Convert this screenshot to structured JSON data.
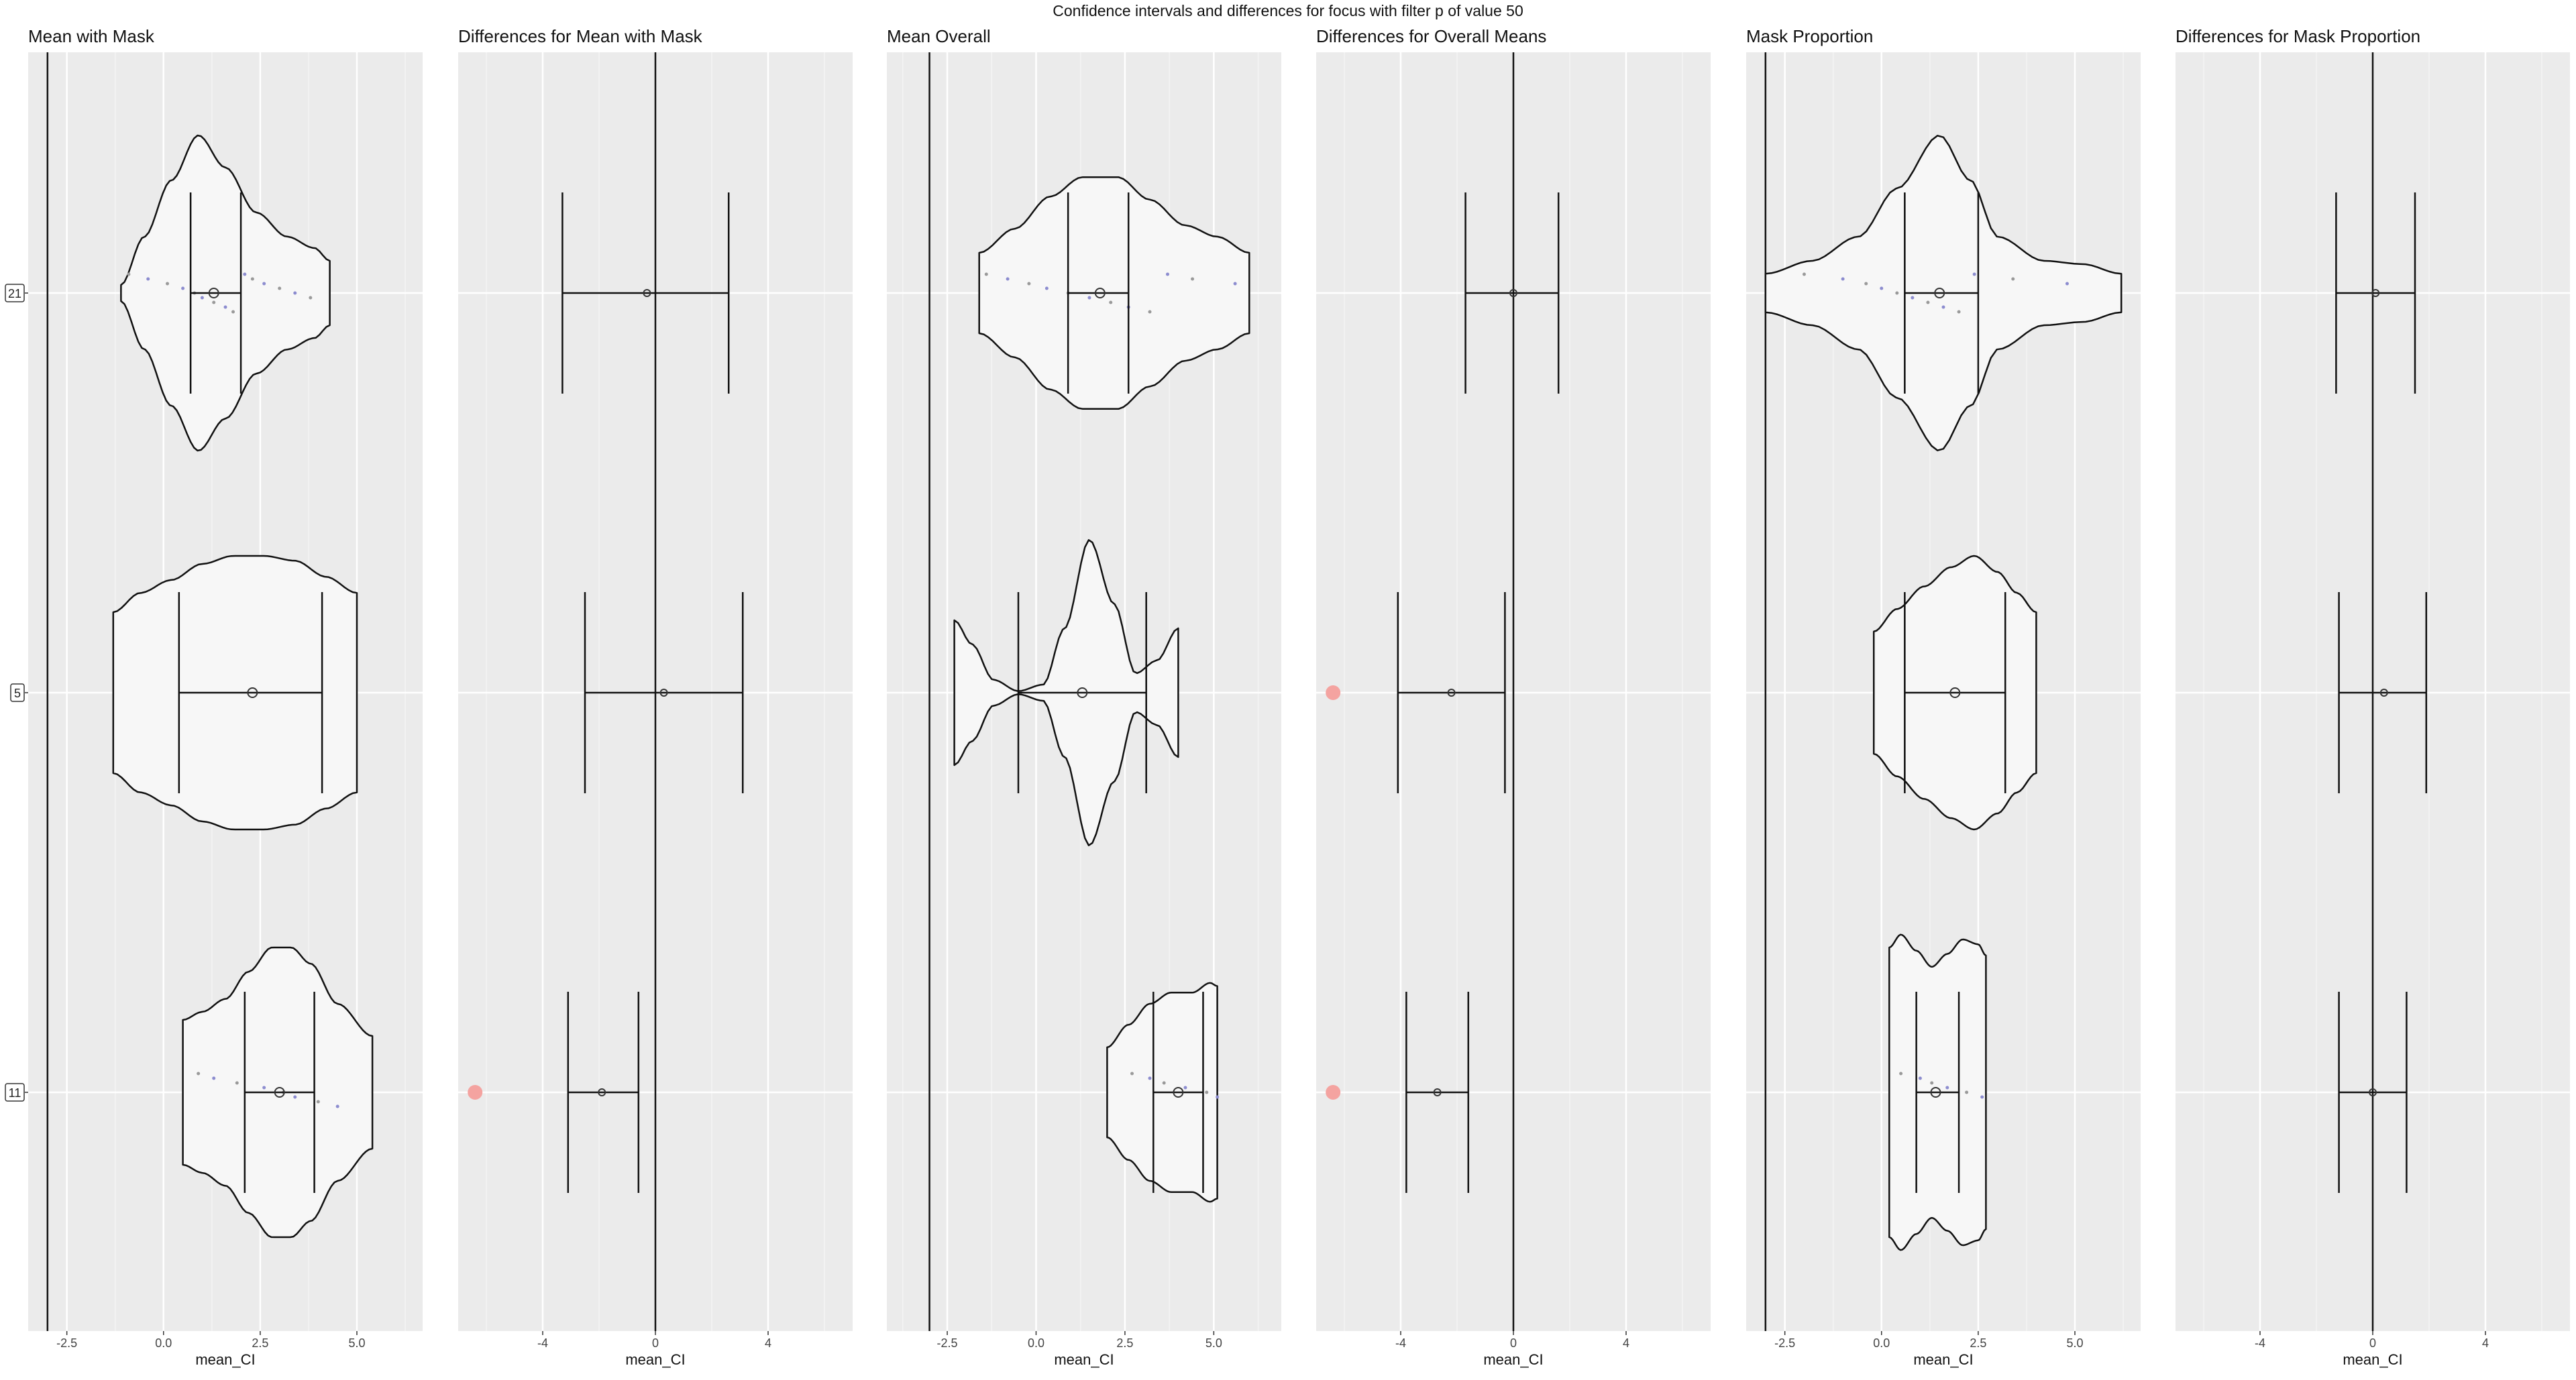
{
  "suptitle": "Confidence intervals and differences for focus with filter p of value 50",
  "group_labels": [
    "21",
    "5",
    "11"
  ],
  "chart_data": [
    {
      "type": "violin",
      "title": "Mean with Mask",
      "xlabel": "mean_CI",
      "xlim": [
        -3.5,
        6.7
      ],
      "xticks": [
        -2.5,
        0,
        2.5,
        5
      ],
      "xtick_labels": [
        "-2.5",
        "0.0",
        "2.5",
        "5.0"
      ],
      "ref_line": -3.0,
      "groups": [
        {
          "label": "21",
          "mean": 1.3,
          "ci": [
            0.7,
            2.0
          ],
          "spread": [
            -1.1,
            4.3
          ],
          "profile": [
            [
              -1.1,
              0.05
            ],
            [
              -0.5,
              0.35
            ],
            [
              0.2,
              0.7
            ],
            [
              0.9,
              0.98
            ],
            [
              1.6,
              0.78
            ],
            [
              2.4,
              0.5
            ],
            [
              3.2,
              0.35
            ],
            [
              3.9,
              0.28
            ],
            [
              4.3,
              0.2
            ]
          ],
          "points": [
            -0.9,
            -0.4,
            0.1,
            0.5,
            0.8,
            1.0,
            1.3,
            1.6,
            1.8,
            2.1,
            2.3,
            2.6,
            3.0,
            3.4,
            3.8
          ]
        },
        {
          "label": "5",
          "mean": 2.3,
          "ci": [
            0.4,
            4.1
          ],
          "spread": [
            -1.3,
            5.0
          ],
          "profile": [
            [
              -1.3,
              0.5
            ],
            [
              -0.6,
              0.62
            ],
            [
              0.2,
              0.7
            ],
            [
              1.0,
              0.8
            ],
            [
              1.8,
              0.85
            ],
            [
              2.6,
              0.85
            ],
            [
              3.4,
              0.82
            ],
            [
              4.2,
              0.72
            ],
            [
              5.0,
              0.62
            ]
          ],
          "points": []
        },
        {
          "label": "11",
          "mean": 3.0,
          "ci": [
            2.1,
            3.9
          ],
          "spread": [
            0.5,
            5.4
          ],
          "profile": [
            [
              0.5,
              0.45
            ],
            [
              1.0,
              0.5
            ],
            [
              1.6,
              0.58
            ],
            [
              2.2,
              0.75
            ],
            [
              2.8,
              0.9
            ],
            [
              3.3,
              0.9
            ],
            [
              3.8,
              0.8
            ],
            [
              4.5,
              0.55
            ],
            [
              5.4,
              0.35
            ]
          ],
          "points": [
            0.9,
            1.3,
            1.9,
            2.6,
            3.1,
            3.4,
            4.0,
            4.5
          ]
        }
      ]
    },
    {
      "type": "errorbar",
      "title": "Differences for Mean with Mask",
      "xlabel": "mean_CI",
      "xlim": [
        -7,
        7
      ],
      "xticks": [
        -4,
        0,
        4
      ],
      "xtick_labels": [
        "-4",
        "0",
        "4"
      ],
      "ref_line": 0,
      "groups": [
        {
          "label": "21",
          "mean": -0.3,
          "ci": [
            -3.3,
            2.6
          ],
          "flag": false
        },
        {
          "label": "5",
          "mean": 0.3,
          "ci": [
            -2.5,
            3.1
          ],
          "flag": false
        },
        {
          "label": "11",
          "mean": -1.9,
          "ci": [
            -3.1,
            -0.6
          ],
          "flag": true
        }
      ],
      "flag_x": -6.4
    },
    {
      "type": "violin",
      "title": "Mean Overall",
      "xlabel": "mean_CI",
      "xlim": [
        -4.2,
        6.9
      ],
      "xticks": [
        -2.5,
        0,
        2.5,
        5
      ],
      "xtick_labels": [
        "-2.5",
        "0.0",
        "2.5",
        "5.0"
      ],
      "ref_line": -3.0,
      "groups": [
        {
          "label": "21",
          "mean": 1.8,
          "ci": [
            0.9,
            2.6
          ],
          "spread": [
            -1.6,
            6.0
          ],
          "profile": [
            [
              -1.6,
              0.25
            ],
            [
              -0.6,
              0.4
            ],
            [
              0.4,
              0.6
            ],
            [
              1.3,
              0.72
            ],
            [
              2.3,
              0.72
            ],
            [
              3.2,
              0.58
            ],
            [
              4.2,
              0.42
            ],
            [
              5.1,
              0.35
            ],
            [
              6.0,
              0.25
            ]
          ],
          "points": [
            -1.4,
            -0.8,
            -0.2,
            0.3,
            0.9,
            1.5,
            2.1,
            2.6,
            3.2,
            3.7,
            4.4,
            5.6
          ]
        },
        {
          "label": "5",
          "mean": 1.3,
          "ci": [
            -0.5,
            3.1
          ],
          "spread": [
            -2.3,
            4.0
          ],
          "profile": [
            [
              -2.3,
              0.45
            ],
            [
              -1.8,
              0.3
            ],
            [
              -1.2,
              0.08
            ],
            [
              -0.5,
              0.01
            ],
            [
              0.2,
              0.05
            ],
            [
              0.8,
              0.4
            ],
            [
              1.5,
              0.95
            ],
            [
              2.2,
              0.55
            ],
            [
              2.8,
              0.12
            ],
            [
              3.4,
              0.2
            ],
            [
              4.0,
              0.4
            ]
          ],
          "points": []
        },
        {
          "label": "11",
          "mean": 4.0,
          "ci": [
            3.3,
            4.7
          ],
          "spread": [
            2.0,
            5.1
          ],
          "profile": [
            [
              2.0,
              0.28
            ],
            [
              2.6,
              0.42
            ],
            [
              3.2,
              0.55
            ],
            [
              3.8,
              0.62
            ],
            [
              4.4,
              0.62
            ],
            [
              4.9,
              0.68
            ],
            [
              5.1,
              0.66
            ]
          ],
          "points": [
            2.7,
            3.2,
            3.6,
            4.2,
            4.8,
            5.1
          ]
        }
      ]
    },
    {
      "type": "errorbar",
      "title": "Differences for Overall Means",
      "xlabel": "mean_CI",
      "xlim": [
        -7,
        7
      ],
      "xticks": [
        -4,
        0,
        4
      ],
      "xtick_labels": [
        "-4",
        "0",
        "4"
      ],
      "ref_line": 0,
      "groups": [
        {
          "label": "21",
          "mean": 0.0,
          "ci": [
            -1.7,
            1.6
          ],
          "flag": false
        },
        {
          "label": "5",
          "mean": -2.2,
          "ci": [
            -4.1,
            -0.3
          ],
          "flag": true
        },
        {
          "label": "11",
          "mean": -2.7,
          "ci": [
            -3.8,
            -1.6
          ],
          "flag": true
        }
      ],
      "flag_x": -6.4
    },
    {
      "type": "violin",
      "title": "Mask Proportion",
      "xlabel": "mean_CI",
      "xlim": [
        -3.5,
        6.7
      ],
      "xticks": [
        -2.5,
        0,
        2.5,
        5
      ],
      "xtick_labels": [
        "-2.5",
        "0.0",
        "2.5",
        "5.0"
      ],
      "ref_line": -3.0,
      "groups": [
        {
          "label": "21",
          "mean": 1.5,
          "ci": [
            0.6,
            2.5
          ],
          "spread": [
            -3.0,
            6.2
          ],
          "profile": [
            [
              -3.0,
              0.12
            ],
            [
              -1.8,
              0.2
            ],
            [
              -0.6,
              0.35
            ],
            [
              0.4,
              0.65
            ],
            [
              1.5,
              0.98
            ],
            [
              2.3,
              0.7
            ],
            [
              3.0,
              0.35
            ],
            [
              4.2,
              0.2
            ],
            [
              5.2,
              0.18
            ],
            [
              6.2,
              0.12
            ]
          ],
          "points": [
            -2.0,
            -1.0,
            -0.4,
            0.0,
            0.4,
            0.8,
            1.2,
            1.6,
            2.0,
            2.4,
            3.4,
            4.8
          ]
        },
        {
          "label": "5",
          "mean": 1.9,
          "ci": [
            0.6,
            3.2
          ],
          "spread": [
            -0.2,
            4.0
          ],
          "profile": [
            [
              -0.2,
              0.38
            ],
            [
              0.4,
              0.52
            ],
            [
              1.1,
              0.66
            ],
            [
              1.8,
              0.78
            ],
            [
              2.4,
              0.85
            ],
            [
              3.0,
              0.75
            ],
            [
              3.5,
              0.62
            ],
            [
              4.0,
              0.5
            ]
          ],
          "points": []
        },
        {
          "label": "11",
          "mean": 1.4,
          "ci": [
            0.9,
            2.0
          ],
          "spread": [
            0.2,
            2.7
          ],
          "profile": [
            [
              0.2,
              0.9
            ],
            [
              0.5,
              0.98
            ],
            [
              0.9,
              0.88
            ],
            [
              1.3,
              0.78
            ],
            [
              1.7,
              0.86
            ],
            [
              2.1,
              0.95
            ],
            [
              2.5,
              0.92
            ],
            [
              2.7,
              0.85
            ]
          ],
          "points": [
            0.5,
            1.0,
            1.3,
            1.7,
            2.2,
            2.6
          ]
        }
      ]
    },
    {
      "type": "errorbar",
      "title": "Differences for Mask Proportion",
      "xlabel": "mean_CI",
      "xlim": [
        -7,
        7
      ],
      "xticks": [
        -4,
        0,
        4
      ],
      "xtick_labels": [
        "-4",
        "0",
        "4"
      ],
      "ref_line": 0,
      "groups": [
        {
          "label": "21",
          "mean": 0.1,
          "ci": [
            -1.3,
            1.5
          ],
          "flag": false
        },
        {
          "label": "5",
          "mean": 0.4,
          "ci": [
            -1.2,
            1.9
          ],
          "flag": false
        },
        {
          "label": "11",
          "mean": 0.0,
          "ci": [
            -1.2,
            1.2
          ],
          "flag": false
        }
      ],
      "flag_x": -6.4
    }
  ]
}
